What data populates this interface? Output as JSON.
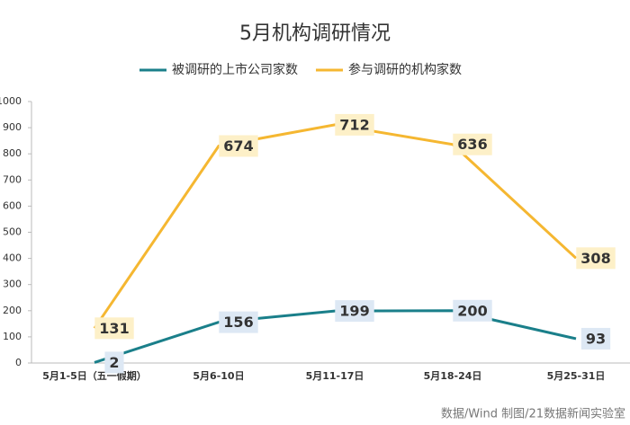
{
  "chart_data": {
    "type": "line",
    "stacked": true,
    "title": "5月机构调研情况",
    "categories": [
      "5月1-5日（五一假期）",
      "5月6-10日",
      "5月11-17日",
      "5月18-24日",
      "5月25-31日"
    ],
    "series": [
      {
        "name": "被调研的上市公司家数",
        "color": "#1a7f8a",
        "values": [
          2,
          156,
          199,
          200,
          93
        ]
      },
      {
        "name": "参与调研的机构家数",
        "color": "#f5b731",
        "values": [
          131,
          674,
          712,
          636,
          308
        ]
      }
    ],
    "ylim": [
      0,
      1000
    ],
    "yticks": [
      0,
      100,
      200,
      300,
      400,
      500,
      600,
      700,
      800,
      900,
      1000
    ],
    "legend": "top",
    "source": "数据/Wind  制图/21数据新闻实验室"
  }
}
